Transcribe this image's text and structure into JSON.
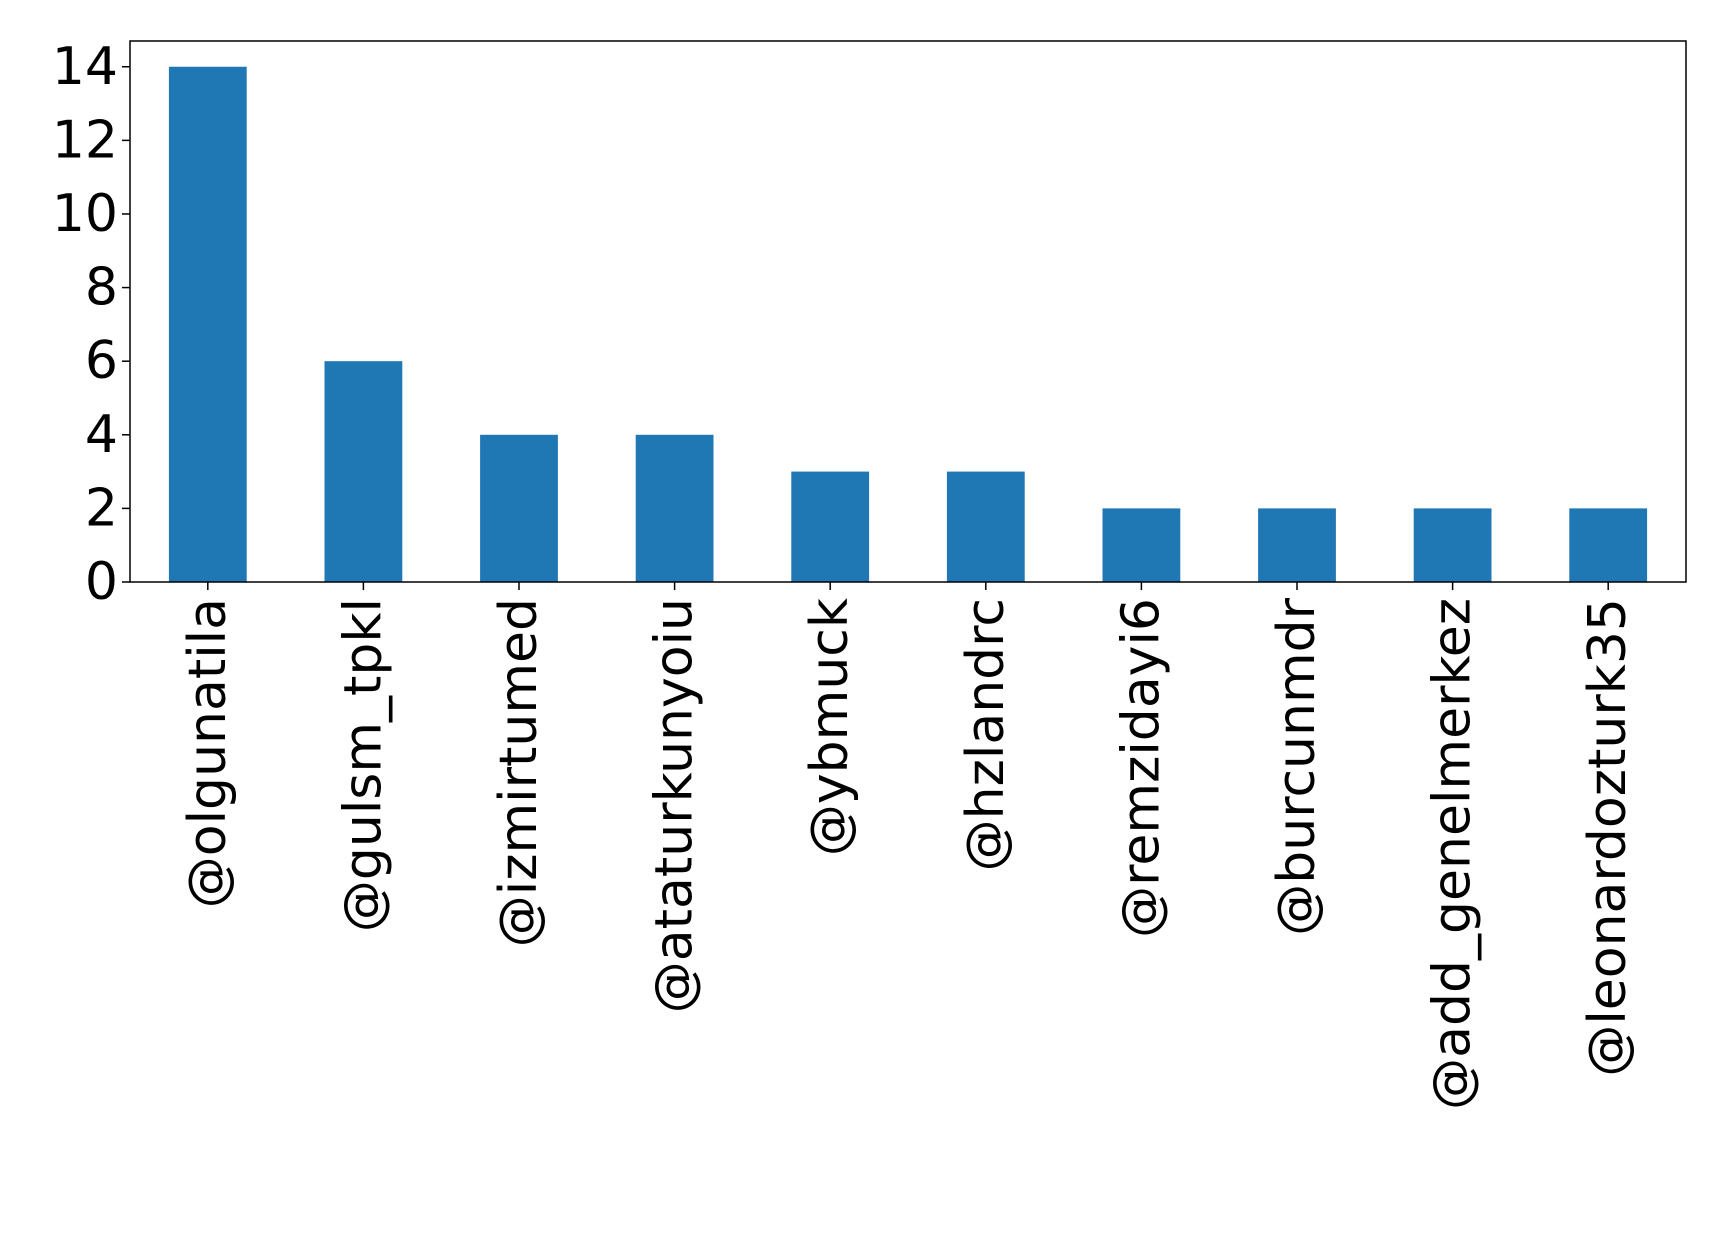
{
  "chart_data": {
    "type": "bar",
    "title": "",
    "xlabel": "",
    "ylabel": "",
    "categories": [
      "@olgunatila",
      "@gulsm_tpkl",
      "@izmirtumed",
      "@ataturkunyoiu",
      "@ybmuck",
      "@hzlandrc",
      "@remzidayi6",
      "@burcunmdr",
      "@add_genelmerkez",
      "@leonardozturk35"
    ],
    "values": [
      14,
      6,
      4,
      4,
      3,
      3,
      2,
      2,
      2,
      2
    ],
    "ylim": [
      0,
      14.7
    ],
    "yticks": [
      0,
      2,
      4,
      6,
      8,
      10,
      12,
      14
    ],
    "grid": false,
    "legend": "none",
    "bar_color": "#1f77b4"
  }
}
